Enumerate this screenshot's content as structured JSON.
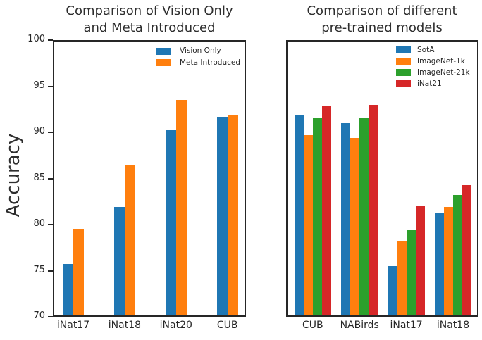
{
  "figure": {
    "ylabel": "Accuracy"
  },
  "colors": {
    "blue": "#1f77b4",
    "orange": "#ff7f0e",
    "green": "#2ca02c",
    "red": "#d62728",
    "axis": "#262626"
  },
  "chart_data": [
    {
      "type": "bar",
      "title": "Comparison of Vision Only and Meta Introduced",
      "title_lines": [
        "Comparison of Vision Only",
        "and Meta Introduced"
      ],
      "categories": [
        "iNat17",
        "iNat18",
        "iNat20",
        "CUB"
      ],
      "series": [
        {
          "name": "Vision Only",
          "color": "#1f77b4",
          "values": [
            75.7,
            81.9,
            90.2,
            91.7
          ]
        },
        {
          "name": "Meta Introduced",
          "color": "#ff7f0e",
          "values": [
            79.5,
            86.5,
            93.5,
            91.9
          ]
        }
      ],
      "ylabel": "Accuracy",
      "ylim": [
        70,
        100
      ],
      "yticks": [
        70,
        75,
        80,
        85,
        90,
        95,
        100
      ],
      "y_tick_labels_visible": true,
      "legend_position": "upper right",
      "grid": false
    },
    {
      "type": "bar",
      "title": "Comparison of different pre-trained models",
      "title_lines": [
        "Comparison of different",
        "pre-trained models"
      ],
      "categories": [
        "CUB",
        "NABirds",
        "iNat17",
        "iNat18"
      ],
      "series": [
        {
          "name": "SotA",
          "color": "#1f77b4",
          "values": [
            91.8,
            91.0,
            75.5,
            81.2
          ]
        },
        {
          "name": "ImageNet-1k",
          "color": "#ff7f0e",
          "values": [
            89.7,
            89.4,
            78.2,
            81.9
          ]
        },
        {
          "name": "ImageNet-21k",
          "color": "#2ca02c",
          "values": [
            91.6,
            91.6,
            79.4,
            83.2
          ]
        },
        {
          "name": "iNat21",
          "color": "#d62728",
          "values": [
            92.9,
            93.0,
            82.0,
            84.3
          ]
        }
      ],
      "ylim": [
        70,
        100
      ],
      "yticks": [
        70,
        75,
        80,
        85,
        90,
        95,
        100
      ],
      "y_tick_labels_visible": false,
      "legend_position": "upper right",
      "grid": false
    }
  ]
}
